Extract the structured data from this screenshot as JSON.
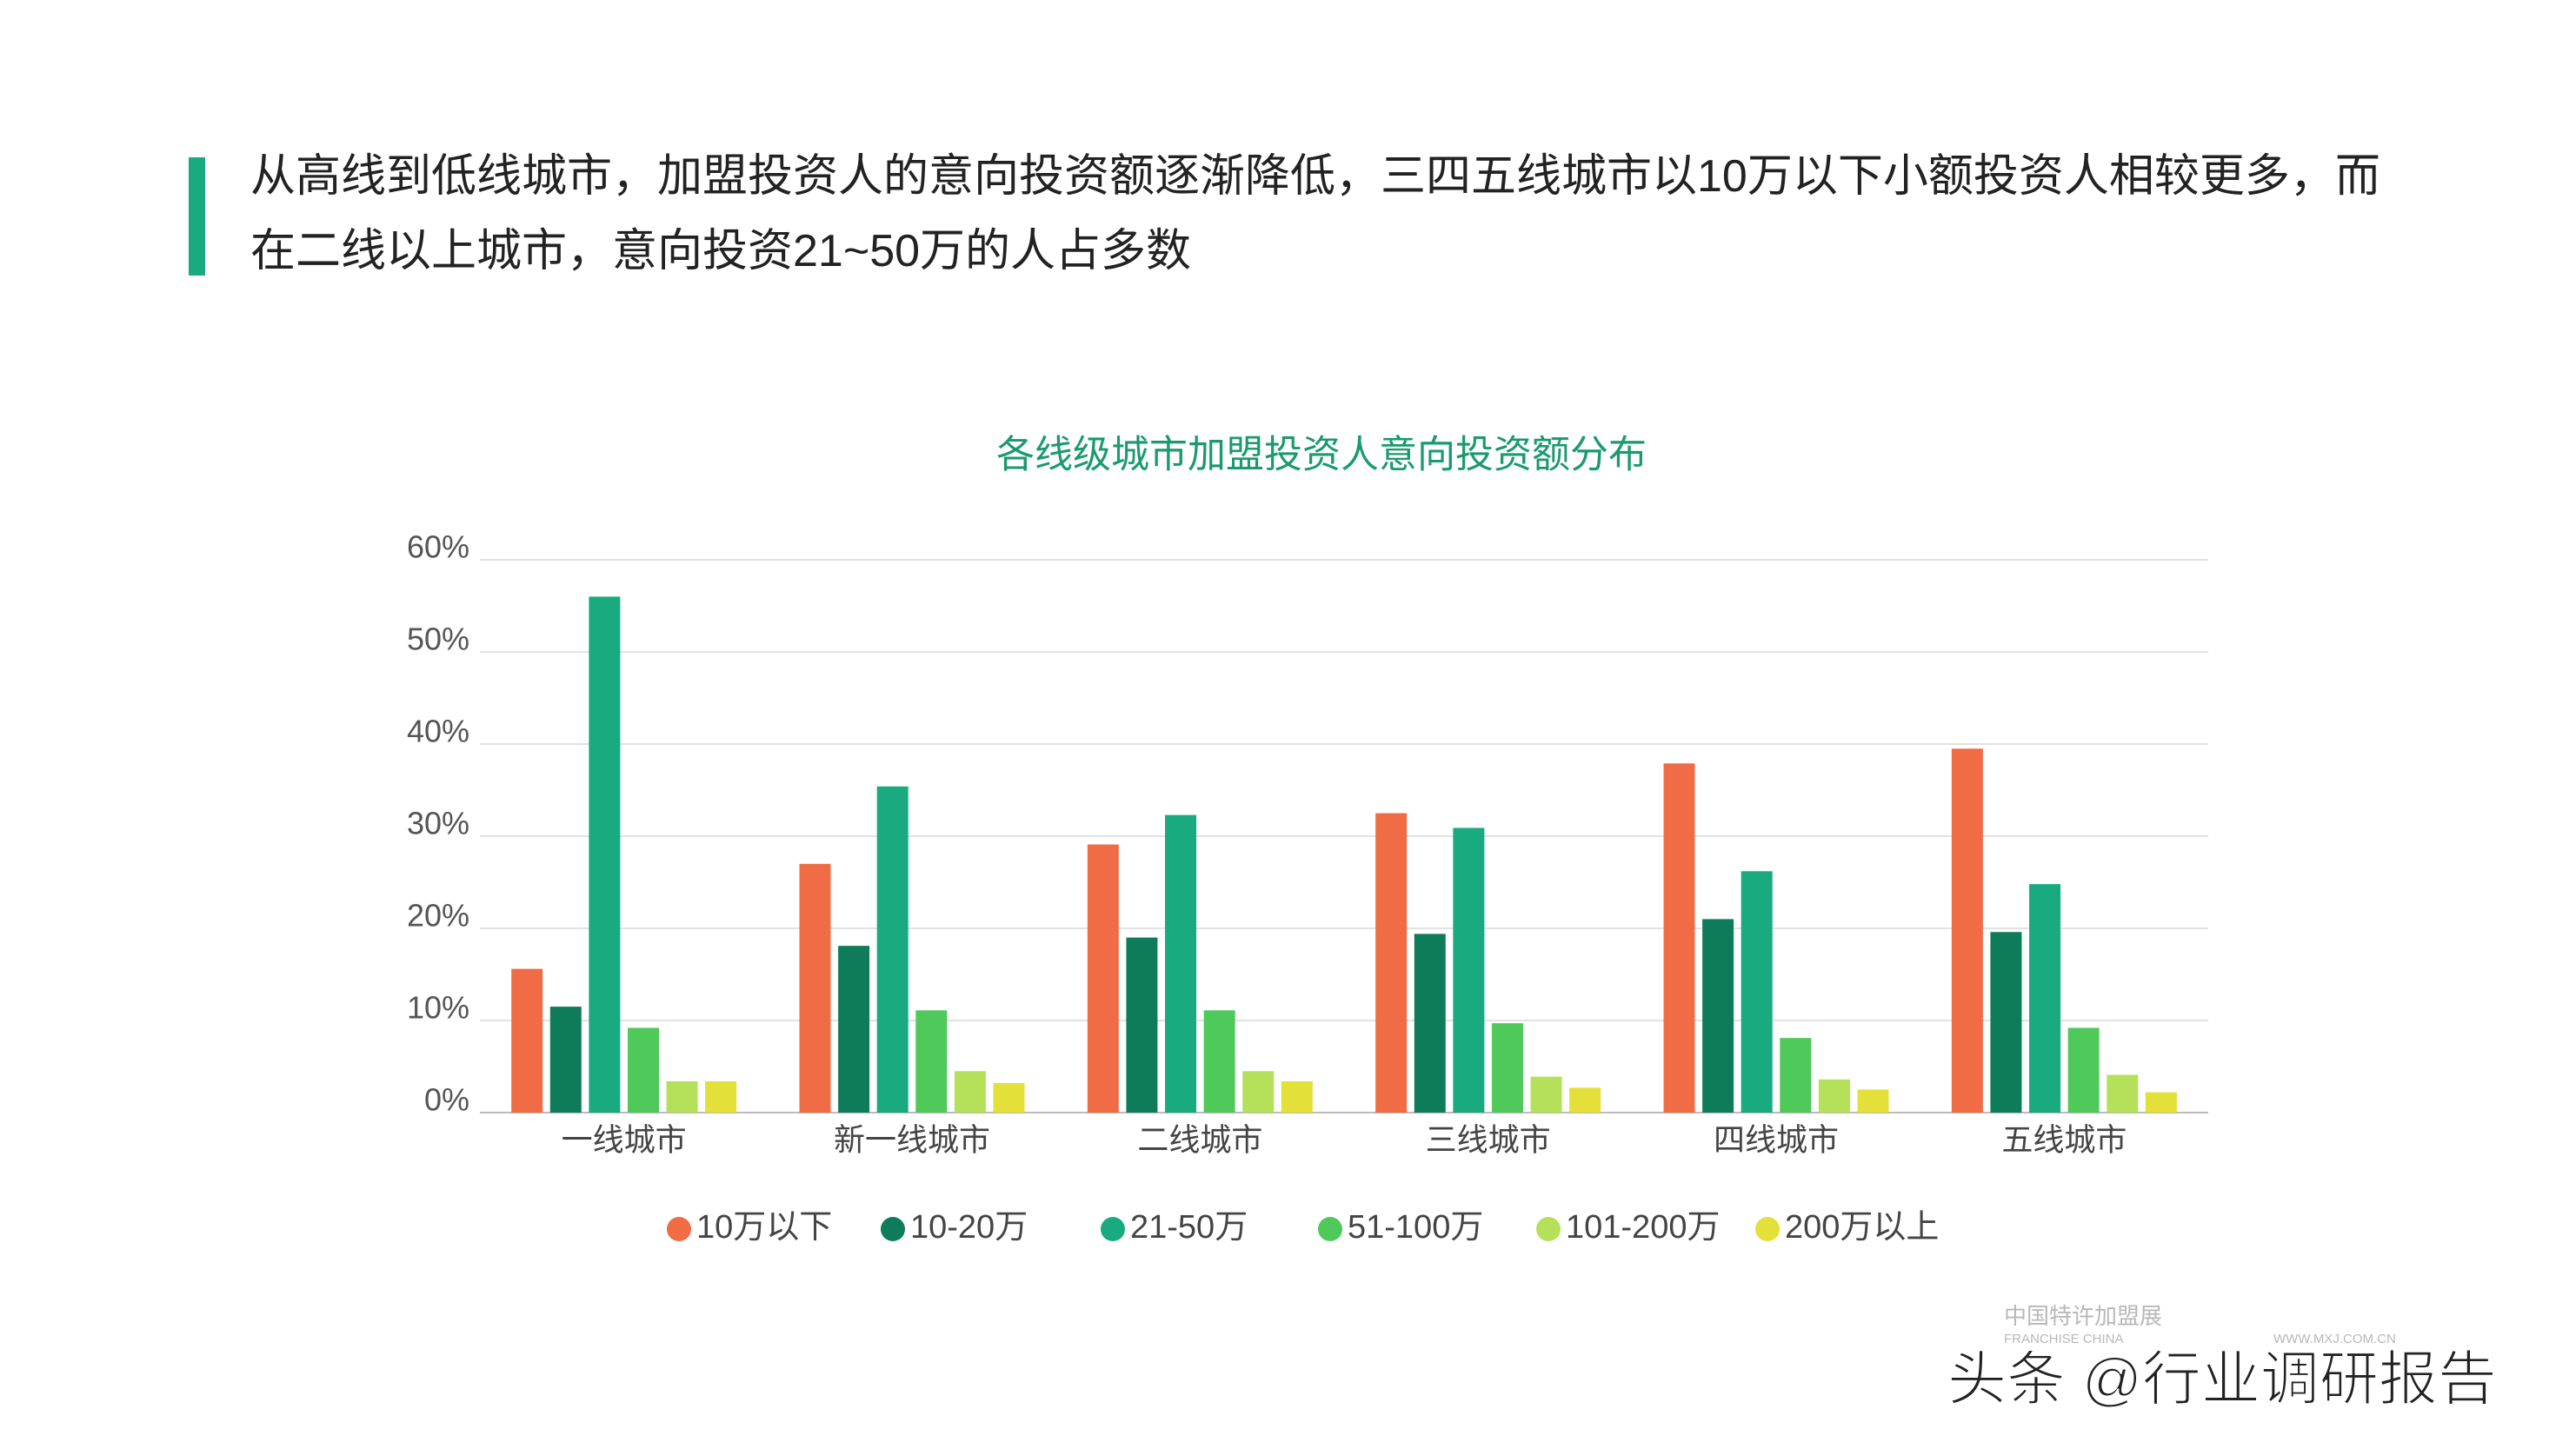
{
  "heading": "从高线到低线城市，加盟投资人的意向投资额逐渐降低，三四五线城市以10万以下小额投资人相较更多，而在二线以上城市，意向投资21~50万的人占多数",
  "chart_data": {
    "type": "bar",
    "title": "各线级城市加盟投资人意向投资额分布",
    "categories": [
      "一线城市",
      "新一线城市",
      "二线城市",
      "三线城市",
      "四线城市",
      "五线城市"
    ],
    "series": [
      {
        "name": "10万以下",
        "color": "#ef6c44",
        "values": [
          15.6,
          27,
          29.1,
          32.5,
          37.9,
          39.5
        ]
      },
      {
        "name": "10-20万",
        "color": "#0e7c5a",
        "values": [
          11.5,
          18.1,
          19,
          19.4,
          21,
          19.6
        ]
      },
      {
        "name": "21-50万",
        "color": "#1aaa80",
        "values": [
          56,
          35.4,
          32.3,
          30.9,
          26.2,
          24.8
        ]
      },
      {
        "name": "51-100万",
        "color": "#4ec95a",
        "values": [
          9.2,
          11.1,
          11.1,
          9.7,
          8.1,
          9.2
        ]
      },
      {
        "name": "101-200万",
        "color": "#b5e05a",
        "values": [
          3.4,
          4.5,
          4.5,
          3.9,
          3.6,
          4.1
        ]
      },
      {
        "name": "200万以上",
        "color": "#e2e039",
        "values": [
          3.4,
          3.2,
          3.4,
          2.7,
          2.5,
          2.2
        ]
      }
    ],
    "ylim": [
      0,
      60
    ],
    "yticks": [
      {
        "value": 0,
        "label": "0%"
      },
      {
        "value": 10,
        "label": "10%"
      },
      {
        "value": 20,
        "label": "20%"
      },
      {
        "value": 30,
        "label": "30%"
      },
      {
        "value": 40,
        "label": "40%"
      },
      {
        "value": 50,
        "label": "50%"
      },
      {
        "value": 60,
        "label": "60%"
      }
    ],
    "grid": true,
    "legend": "bottom"
  },
  "watermark": {
    "logo1": "中国特许加盟展",
    "logo1_sub": "FRANCHISE CHINA",
    "logo2_sub": "WWW.MXJ.COM.CN",
    "source": "头条 @行业调研报告"
  }
}
